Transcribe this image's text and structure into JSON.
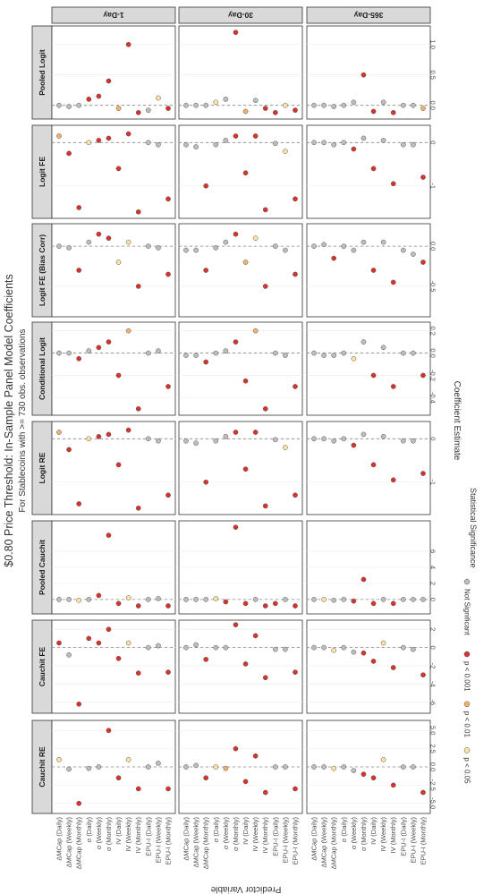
{
  "colors": {
    "Not Significant": "#bdbdbd",
    "p < 0.05": "#fbe3a4",
    "p < 0.01": "#f4b16b",
    "p < 0.001": "#d7322b"
  },
  "chart_data": {
    "type": "scatter",
    "title": "$0.80 Price Threshold: In-Sample Panel Model Coefficients",
    "subtitle": "For Stablecoins with >= 730 obs. observations",
    "xlabel": "Predictor Variable",
    "ylabel": "Coefficient Estimate",
    "legend": {
      "title": "Statistical Significance",
      "entries": [
        "Not Significant",
        "p < 0.001",
        "p < 0.01",
        "p < 0.05"
      ],
      "position": "bottom"
    },
    "predictors": [
      "ΔMCap (Daily)",
      "ΔMCap (Weekly)",
      "ΔMCap (Monthly)",
      "σ (Daily)",
      "σ (Weekly)",
      "σ (Monthly)",
      "IV (Daily)",
      "IV (Weekly)",
      "IV (Monthly)",
      "EPU-I (Daily)",
      "EPU-I (Weekly)",
      "EPU-I (Monthly)"
    ],
    "horizons": [
      "1-Day",
      "30-Day",
      "365-Day"
    ],
    "models": [
      {
        "name": "Pooled Logit",
        "range": [
          -0.12,
          1.2
        ],
        "ticks": [
          0,
          0.5,
          1
        ],
        "tick_labels": [
          "0.0",
          "0.5",
          "1.0"
        ],
        "estimates": [
          [
            0,
            -0.02,
            0,
            0.1,
            0.15,
            0.4,
            -0.05,
            1.0,
            -0.12,
            -0.08,
            0.12,
            -0.05
          ],
          [
            0,
            0,
            0,
            0.05,
            0.1,
            1.2,
            -0.1,
            0.08,
            -0.05,
            -0.12,
            0,
            -0.08
          ],
          [
            0,
            0,
            -0.02,
            0,
            0.05,
            0.5,
            -0.1,
            0.05,
            -0.12,
            0,
            0,
            -0.05
          ]
        ],
        "significance": [
          [
            "Not Significant",
            "Not Significant",
            "Not Significant",
            "p < 0.001",
            "p < 0.001",
            "p < 0.001",
            "p < 0.01",
            "p < 0.001",
            "p < 0.001",
            "Not Significant",
            "p < 0.05",
            "p < 0.001"
          ],
          [
            "Not Significant",
            "Not Significant",
            "Not Significant",
            "p < 0.05",
            "Not Significant",
            "p < 0.001",
            "p < 0.01",
            "Not Significant",
            "p < 0.001",
            "p < 0.001",
            "p < 0.05",
            "p < 0.001"
          ],
          [
            "Not Significant",
            "Not Significant",
            "Not Significant",
            "Not Significant",
            "Not Significant",
            "p < 0.001",
            "p < 0.001",
            "Not Significant",
            "p < 0.001",
            "Not Significant",
            "Not Significant",
            "p < 0.01"
          ]
        ]
      },
      {
        "name": "Logit FE",
        "range": [
          -1.6,
          0.25
        ],
        "ticks": [
          -1,
          0
        ],
        "tick_labels": [
          "-1",
          "0"
        ],
        "estimates": [
          [
            0.15,
            -0.25,
            -1.5,
            0,
            0.05,
            0.1,
            -0.6,
            0.2,
            -1.6,
            0,
            -0.05,
            -1.3
          ],
          [
            -0.05,
            -0.1,
            -1.0,
            -0.05,
            0.05,
            0.15,
            -0.7,
            0.15,
            -1.55,
            -0.02,
            -0.2,
            -1.3
          ],
          [
            0,
            0,
            -0.05,
            0,
            -0.15,
            0.1,
            -0.6,
            0.05,
            -0.95,
            -0.05,
            -0.05,
            -0.8
          ]
        ],
        "significance": [
          [
            "p < 0.01",
            "p < 0.001",
            "p < 0.001",
            "p < 0.05",
            "p < 0.001",
            "p < 0.001",
            "p < 0.001",
            "p < 0.001",
            "p < 0.001",
            "Not Significant",
            "Not Significant",
            "p < 0.001"
          ],
          [
            "Not Significant",
            "Not Significant",
            "p < 0.001",
            "Not Significant",
            "Not Significant",
            "p < 0.001",
            "p < 0.001",
            "p < 0.001",
            "p < 0.001",
            "Not Significant",
            "p < 0.05",
            "p < 0.001"
          ],
          [
            "Not Significant",
            "Not Significant",
            "Not Significant",
            "Not Significant",
            "p < 0.001",
            "Not Significant",
            "p < 0.001",
            "Not Significant",
            "p < 0.001",
            "Not Significant",
            "Not Significant",
            "p < 0.001"
          ]
        ]
      },
      {
        "name": "Logit FE (Bias Corr)",
        "range": [
          -0.8,
          0.2
        ],
        "ticks": [
          -0.5,
          0
        ],
        "tick_labels": [
          "-0.5",
          "0.0"
        ],
        "estimates": [
          [
            0,
            -0.02,
            -0.3,
            0.05,
            0.15,
            0.1,
            -0.2,
            0.05,
            -0.5,
            0,
            -0.02,
            -0.35
          ],
          [
            -0.05,
            -0.05,
            -0.3,
            -0.02,
            0.05,
            0.15,
            -0.2,
            0.1,
            -0.5,
            0,
            -0.05,
            -0.35
          ],
          [
            0,
            0.02,
            -0.15,
            0,
            -0.05,
            0.05,
            -0.3,
            0.05,
            -0.45,
            -0.05,
            -0.1,
            -0.2
          ]
        ],
        "significance": [
          [
            "Not Significant",
            "Not Significant",
            "p < 0.001",
            "Not Significant",
            "p < 0.001",
            "p < 0.001",
            "p < 0.05",
            "p < 0.05",
            "p < 0.001",
            "Not Significant",
            "Not Significant",
            "p < 0.001"
          ],
          [
            "Not Significant",
            "Not Significant",
            "p < 0.001",
            "Not Significant",
            "Not Significant",
            "p < 0.001",
            "p < 0.01",
            "p < 0.05",
            "p < 0.001",
            "Not Significant",
            "Not Significant",
            "p < 0.001"
          ],
          [
            "Not Significant",
            "Not Significant",
            "p < 0.001",
            "Not Significant",
            "Not Significant",
            "Not Significant",
            "p < 0.001",
            "Not Significant",
            "p < 0.001",
            "Not Significant",
            "Not Significant",
            "p < 0.001"
          ]
        ]
      },
      {
        "name": "Conditional Logit",
        "range": [
          -0.5,
          0.22
        ],
        "ticks": [
          -0.4,
          -0.2,
          0,
          0.2
        ],
        "tick_labels": [
          "-0.4",
          "-0.2",
          "0.0",
          "0.2"
        ],
        "estimates": [
          [
            0,
            0,
            -0.05,
            0.02,
            0.05,
            0.1,
            -0.2,
            0.2,
            -0.5,
            0,
            0.02,
            -0.3
          ],
          [
            -0.02,
            -0.02,
            -0.08,
            0,
            0.02,
            0.1,
            -0.25,
            0.2,
            -0.5,
            0,
            -0.02,
            -0.3
          ],
          [
            0,
            -0.02,
            -0.02,
            0,
            -0.05,
            0.1,
            -0.2,
            0.05,
            -0.3,
            0,
            0,
            -0.2
          ]
        ],
        "significance": [
          [
            "Not Significant",
            "Not Significant",
            "p < 0.001",
            "Not Significant",
            "p < 0.001",
            "p < 0.001",
            "p < 0.001",
            "p < 0.01",
            "p < 0.001",
            "Not Significant",
            "Not Significant",
            "p < 0.001"
          ],
          [
            "Not Significant",
            "Not Significant",
            "p < 0.001",
            "Not Significant",
            "Not Significant",
            "p < 0.001",
            "p < 0.001",
            "p < 0.01",
            "p < 0.001",
            "Not Significant",
            "Not Significant",
            "p < 0.001"
          ],
          [
            "Not Significant",
            "Not Significant",
            "Not Significant",
            "Not Significant",
            "p < 0.05",
            "Not Significant",
            "p < 0.001",
            "Not Significant",
            "p < 0.001",
            "Not Significant",
            "Not Significant",
            "p < 0.001"
          ]
        ]
      },
      {
        "name": "Logit RE",
        "range": [
          -1.6,
          0.25
        ],
        "ticks": [
          -1,
          0
        ],
        "tick_labels": [
          "-1",
          "0"
        ],
        "estimates": [
          [
            0.15,
            -0.25,
            -1.5,
            0,
            0.05,
            0.1,
            -0.6,
            0.2,
            -1.6,
            0,
            -0.05,
            -1.3
          ],
          [
            -0.05,
            -0.1,
            -1.0,
            -0.05,
            0.05,
            0.15,
            -0.7,
            0.15,
            -1.55,
            -0.02,
            -0.2,
            -1.3
          ],
          [
            0,
            0,
            -0.05,
            0,
            -0.15,
            0.1,
            -0.6,
            0.05,
            -0.95,
            -0.05,
            -0.05,
            -0.8
          ]
        ],
        "significance": [
          [
            "p < 0.01",
            "p < 0.001",
            "p < 0.001",
            "p < 0.05",
            "p < 0.001",
            "p < 0.001",
            "p < 0.001",
            "p < 0.001",
            "p < 0.001",
            "Not Significant",
            "Not Significant",
            "p < 0.001"
          ],
          [
            "Not Significant",
            "Not Significant",
            "p < 0.001",
            "Not Significant",
            "Not Significant",
            "p < 0.001",
            "p < 0.001",
            "p < 0.001",
            "p < 0.001",
            "Not Significant",
            "p < 0.05",
            "p < 0.001"
          ],
          [
            "Not Significant",
            "Not Significant",
            "Not Significant",
            "Not Significant",
            "p < 0.001",
            "Not Significant",
            "p < 0.001",
            "Not Significant",
            "p < 0.001",
            "Not Significant",
            "Not Significant",
            "p < 0.001"
          ]
        ]
      },
      {
        "name": "Pooled Cauchit",
        "range": [
          -1,
          9
        ],
        "ticks": [
          0,
          2,
          4,
          6
        ],
        "tick_labels": [
          "0",
          "2",
          "4",
          "6"
        ],
        "estimates": [
          [
            0,
            0,
            -0.1,
            0,
            0.5,
            8,
            -0.5,
            0.2,
            -0.8,
            0,
            0.1,
            -0.8
          ],
          [
            0,
            0,
            0,
            0.1,
            -0.3,
            9,
            -0.5,
            0,
            -0.8,
            -0.5,
            0,
            -0.8
          ],
          [
            0,
            0,
            -0.1,
            0,
            -0.2,
            2.5,
            -0.5,
            0,
            -0.5,
            0,
            0,
            0
          ]
        ],
        "significance": [
          [
            "Not Significant",
            "Not Significant",
            "p < 0.05",
            "Not Significant",
            "p < 0.001",
            "p < 0.001",
            "p < 0.001",
            "p < 0.05",
            "p < 0.001",
            "Not Significant",
            "Not Significant",
            "p < 0.001"
          ],
          [
            "Not Significant",
            "Not Significant",
            "Not Significant",
            "p < 0.05",
            "p < 0.001",
            "p < 0.001",
            "p < 0.001",
            "Not Significant",
            "p < 0.001",
            "p < 0.001",
            "Not Significant",
            "p < 0.001"
          ],
          [
            "Not Significant",
            "p < 0.05",
            "Not Significant",
            "Not Significant",
            "p < 0.001",
            "p < 0.001",
            "p < 0.001",
            "Not Significant",
            "p < 0.001",
            "Not Significant",
            "Not Significant",
            "Not Significant"
          ]
        ]
      },
      {
        "name": "Cauchit FE",
        "range": [
          -6.5,
          2.3
        ],
        "ticks": [
          -6,
          -4,
          -2,
          0,
          2
        ],
        "tick_labels": [
          "-6",
          "-4",
          "-2",
          "0",
          "2"
        ],
        "estimates": [
          [
            0.5,
            -0.8,
            -6.2,
            1,
            0.5,
            2,
            -1.2,
            0.5,
            -2.8,
            0,
            0.2,
            -2.7
          ],
          [
            0,
            0.3,
            -1.3,
            0,
            0,
            2.5,
            -1.8,
            1.3,
            -3.3,
            -0.2,
            -0.2,
            -2.7
          ],
          [
            0,
            0,
            -0.3,
            0,
            -0.5,
            -0.6,
            -1.5,
            0.5,
            -2.2,
            0,
            -0.2,
            -3
          ]
        ],
        "significance": [
          [
            "p < 0.001",
            "Not Significant",
            "p < 0.001",
            "p < 0.001",
            "p < 0.001",
            "p < 0.001",
            "p < 0.001",
            "p < 0.05",
            "p < 0.001",
            "Not Significant",
            "Not Significant",
            "p < 0.001"
          ],
          [
            "Not Significant",
            "Not Significant",
            "p < 0.001",
            "Not Significant",
            "Not Significant",
            "p < 0.001",
            "p < 0.001",
            "p < 0.001",
            "p < 0.001",
            "Not Significant",
            "Not Significant",
            "p < 0.001"
          ],
          [
            "Not Significant",
            "Not Significant",
            "p < 0.05",
            "Not Significant",
            "Not Significant",
            "p < 0.001",
            "p < 0.001",
            "p < 0.05",
            "p < 0.001",
            "Not Significant",
            "Not Significant",
            "p < 0.001"
          ]
        ]
      },
      {
        "name": "Cauchit RE",
        "range": [
          -5.5,
          5.5
        ],
        "ticks": [
          -5,
          -2.5,
          0,
          2.5,
          5
        ],
        "tick_labels": [
          "-5.0",
          "-2.5",
          "0.0",
          "2.5",
          "5.0"
        ],
        "estimates": [
          [
            1,
            -0.3,
            -5,
            -0.2,
            0,
            5,
            -1.5,
            1,
            -3,
            0,
            0.5,
            -3
          ],
          [
            0,
            0.2,
            -1.5,
            0,
            -0.2,
            2.5,
            -2,
            1.5,
            -3.5,
            0,
            0,
            -3
          ],
          [
            0,
            0,
            -0.2,
            0,
            -0.5,
            -1,
            -1.5,
            1,
            -2.5,
            0,
            0,
            -3.5
          ]
        ],
        "significance": [
          [
            "p < 0.05",
            "Not Significant",
            "p < 0.001",
            "Not Significant",
            "Not Significant",
            "p < 0.001",
            "p < 0.001",
            "p < 0.05",
            "p < 0.001",
            "Not Significant",
            "Not Significant",
            "p < 0.001"
          ],
          [
            "Not Significant",
            "Not Significant",
            "p < 0.001",
            "p < 0.05",
            "p < 0.01",
            "p < 0.001",
            "p < 0.001",
            "p < 0.001",
            "p < 0.001",
            "Not Significant",
            "Not Significant",
            "p < 0.001"
          ],
          [
            "Not Significant",
            "Not Significant",
            "p < 0.05",
            "Not Significant",
            "Not Significant",
            "p < 0.001",
            "p < 0.001",
            "p < 0.05",
            "p < 0.001",
            "Not Significant",
            "Not Significant",
            "p < 0.001"
          ]
        ]
      }
    ]
  }
}
